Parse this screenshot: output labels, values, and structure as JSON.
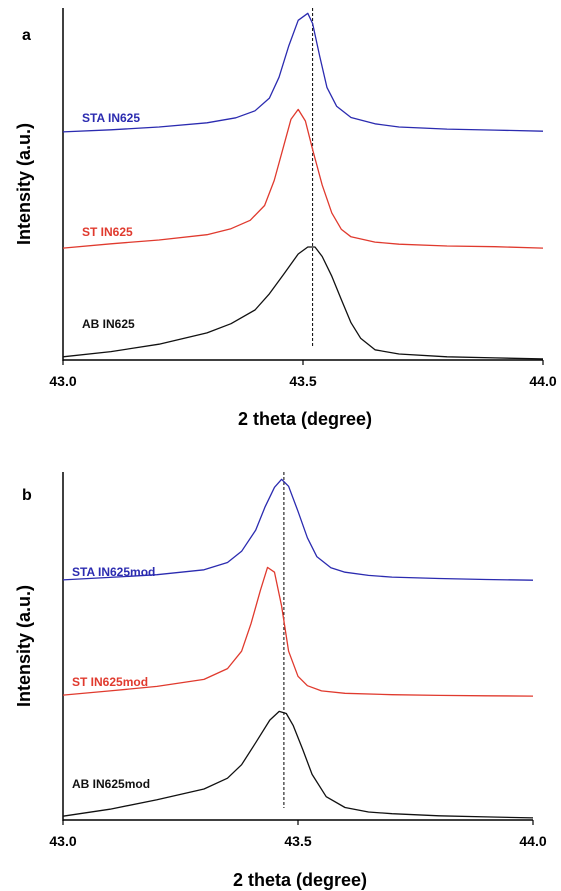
{
  "chart_data": [
    {
      "type": "line",
      "panel_label": "a",
      "xlabel": "2 theta (degree)",
      "ylabel": "Intensity (a.u.)",
      "xlim": [
        43.0,
        44.0
      ],
      "x_ticks": [
        "43.0",
        "43.5",
        "44.0"
      ],
      "x_tick_values": [
        43.0,
        43.5,
        44.0
      ],
      "reference_line_x": 43.52,
      "grid": false,
      "series": [
        {
          "name": "STA IN625",
          "color": "#2b2bb0",
          "x": [
            43.0,
            43.1,
            43.2,
            43.3,
            43.36,
            43.4,
            43.43,
            43.45,
            43.47,
            43.49,
            43.51,
            43.52,
            43.535,
            43.55,
            43.57,
            43.6,
            43.65,
            43.7,
            43.8,
            43.9,
            44.0
          ],
          "y": [
            0.648,
            0.654,
            0.662,
            0.674,
            0.688,
            0.708,
            0.744,
            0.803,
            0.891,
            0.965,
            0.985,
            0.956,
            0.862,
            0.774,
            0.721,
            0.689,
            0.671,
            0.662,
            0.656,
            0.653,
            0.65
          ]
        },
        {
          "name": "ST IN625",
          "color": "#e03a2e",
          "x": [
            43.0,
            43.1,
            43.2,
            43.3,
            43.35,
            43.39,
            43.42,
            43.44,
            43.46,
            43.475,
            43.49,
            43.505,
            43.52,
            43.54,
            43.56,
            43.58,
            43.6,
            43.65,
            43.7,
            43.8,
            43.9,
            44.0
          ],
          "y": [
            0.318,
            0.33,
            0.341,
            0.356,
            0.373,
            0.397,
            0.439,
            0.51,
            0.609,
            0.684,
            0.712,
            0.679,
            0.598,
            0.497,
            0.418,
            0.371,
            0.35,
            0.335,
            0.329,
            0.324,
            0.322,
            0.318
          ]
        },
        {
          "name": "AB IN625",
          "color": "#111111",
          "x": [
            43.0,
            43.1,
            43.2,
            43.3,
            43.35,
            43.4,
            43.43,
            43.46,
            43.49,
            43.51,
            43.525,
            43.54,
            43.56,
            43.58,
            43.6,
            43.62,
            43.65,
            43.7,
            43.8,
            43.9,
            44.0
          ],
          "y": [
            0.009,
            0.024,
            0.045,
            0.077,
            0.103,
            0.142,
            0.188,
            0.244,
            0.301,
            0.321,
            0.321,
            0.294,
            0.238,
            0.171,
            0.106,
            0.062,
            0.029,
            0.017,
            0.009,
            0.006,
            0.003
          ]
        }
      ]
    },
    {
      "type": "line",
      "panel_label": "b",
      "xlabel": "2 theta (degree)",
      "ylabel": "Intensity (a.u.)",
      "xlim": [
        43.0,
        44.0
      ],
      "x_ticks": [
        "43.0",
        "43.5",
        "44.0"
      ],
      "x_tick_values": [
        43.0,
        43.5,
        44.0
      ],
      "reference_line_x": 43.47,
      "grid": false,
      "series": [
        {
          "name": "STA IN625mod",
          "color": "#2b2bb0",
          "x": [
            43.0,
            43.1,
            43.2,
            43.3,
            43.35,
            43.38,
            43.41,
            43.43,
            43.45,
            43.465,
            43.48,
            43.5,
            43.52,
            43.54,
            43.57,
            43.6,
            43.65,
            43.7,
            43.8,
            43.9,
            44.0
          ],
          "y": [
            0.69,
            0.697,
            0.705,
            0.719,
            0.74,
            0.772,
            0.833,
            0.9,
            0.956,
            0.979,
            0.959,
            0.887,
            0.811,
            0.757,
            0.725,
            0.712,
            0.703,
            0.698,
            0.694,
            0.691,
            0.689
          ]
        },
        {
          "name": "ST IN625mod",
          "color": "#e03a2e",
          "x": [
            43.0,
            43.1,
            43.2,
            43.3,
            43.35,
            43.38,
            43.4,
            43.42,
            43.435,
            43.45,
            43.465,
            43.48,
            43.5,
            43.52,
            43.55,
            43.6,
            43.7,
            43.8,
            43.9,
            44.0
          ],
          "y": [
            0.359,
            0.371,
            0.384,
            0.404,
            0.435,
            0.485,
            0.564,
            0.66,
            0.726,
            0.712,
            0.615,
            0.485,
            0.413,
            0.386,
            0.371,
            0.364,
            0.36,
            0.358,
            0.357,
            0.356
          ]
        },
        {
          "name": "AB IN625mod",
          "color": "#111111",
          "x": [
            43.0,
            43.1,
            43.2,
            43.3,
            43.35,
            43.38,
            43.41,
            43.44,
            43.46,
            43.475,
            43.49,
            43.51,
            43.53,
            43.56,
            43.6,
            43.65,
            43.7,
            43.8,
            43.9,
            44.0
          ],
          "y": [
            0.011,
            0.031,
            0.058,
            0.089,
            0.12,
            0.159,
            0.222,
            0.287,
            0.312,
            0.306,
            0.271,
            0.203,
            0.131,
            0.067,
            0.036,
            0.023,
            0.018,
            0.012,
            0.009,
            0.006
          ]
        }
      ]
    }
  ]
}
